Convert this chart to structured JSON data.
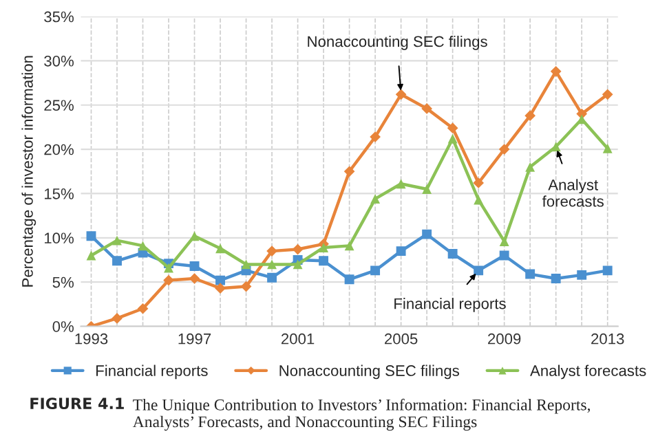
{
  "chart_data": {
    "type": "line",
    "ylabel": "Percentage of investor information",
    "x": [
      1993,
      1994,
      1995,
      1996,
      1997,
      1998,
      1999,
      2000,
      2001,
      2002,
      2003,
      2004,
      2005,
      2006,
      2007,
      2008,
      2009,
      2010,
      2011,
      2012,
      2013
    ],
    "series": [
      {
        "name": "Financial reports",
        "color": "#4a90d0",
        "marker": "square",
        "values": [
          10.2,
          7.4,
          8.3,
          7.1,
          6.8,
          5.2,
          6.3,
          5.5,
          7.5,
          7.4,
          5.3,
          6.3,
          8.5,
          10.4,
          8.2,
          6.3,
          8.0,
          5.9,
          5.4,
          5.8,
          6.3
        ]
      },
      {
        "name": "Nonaccounting SEC filings",
        "color": "#e8843a",
        "marker": "diamond",
        "values": [
          0,
          0.9,
          2.0,
          5.2,
          5.4,
          4.3,
          4.5,
          8.5,
          8.7,
          9.3,
          17.5,
          21.4,
          26.2,
          24.6,
          22.4,
          16.2,
          20.0,
          23.8,
          28.8,
          24.0,
          26.2
        ]
      },
      {
        "name": "Analyst forecasts",
        "color": "#8cc256",
        "marker": "triangle",
        "values": [
          8.0,
          9.7,
          9.1,
          6.6,
          10.2,
          8.8,
          7.0,
          7.0,
          7.0,
          8.9,
          9.1,
          14.4,
          16.1,
          15.5,
          21.2,
          14.3,
          9.6,
          18.0,
          20.3,
          23.4,
          20.1
        ]
      }
    ],
    "xlim": [
      1992.6,
      2013.4
    ],
    "xticks": [
      1993,
      {
        "value": 1994,
        "label": null
      },
      {
        "value": 1995,
        "label": null
      },
      {
        "value": 1996,
        "label": null
      },
      1997,
      {
        "value": 1998,
        "label": null
      },
      {
        "value": 1999,
        "label": null
      },
      {
        "value": 2000,
        "label": null
      },
      2001,
      {
        "value": 2002,
        "label": null
      },
      {
        "value": 2003,
        "label": null
      },
      {
        "value": 2004,
        "label": null
      },
      2005,
      {
        "value": 2006,
        "label": null
      },
      {
        "value": 2007,
        "label": null
      },
      {
        "value": 2008,
        "label": null
      },
      2009,
      {
        "value": 2010,
        "label": null
      },
      {
        "value": 2011,
        "label": null
      },
      {
        "value": 2012,
        "label": null
      },
      2013
    ],
    "ylim": [
      0,
      35
    ],
    "yticks": [
      {
        "value": 0,
        "label": "0%"
      },
      {
        "value": 5,
        "label": "5%"
      },
      {
        "value": 10,
        "label": "10%"
      },
      {
        "value": 15,
        "label": "15%"
      },
      {
        "value": 20,
        "label": "20%"
      },
      {
        "value": 25,
        "label": "25%"
      },
      {
        "value": 30,
        "label": "30%"
      },
      {
        "value": 35,
        "label": "35%"
      }
    ],
    "grid": true,
    "legend": "bottom",
    "line_style": "solid",
    "annotations": [
      {
        "text": "Nonaccounting SEC filings",
        "x": 2005,
        "y": 26.2
      },
      {
        "text": "Analyst\nforecasts",
        "x": 2011,
        "y": 20.3
      },
      {
        "text": "Financial reports",
        "x": 2008,
        "y": 6.3
      },
      "FIGURE 4.1",
      "The Unique Contribution to Investors’ Information: Financial Reports, Analysts’ Forecasts, and Nonaccounting SEC Filings"
    ]
  }
}
